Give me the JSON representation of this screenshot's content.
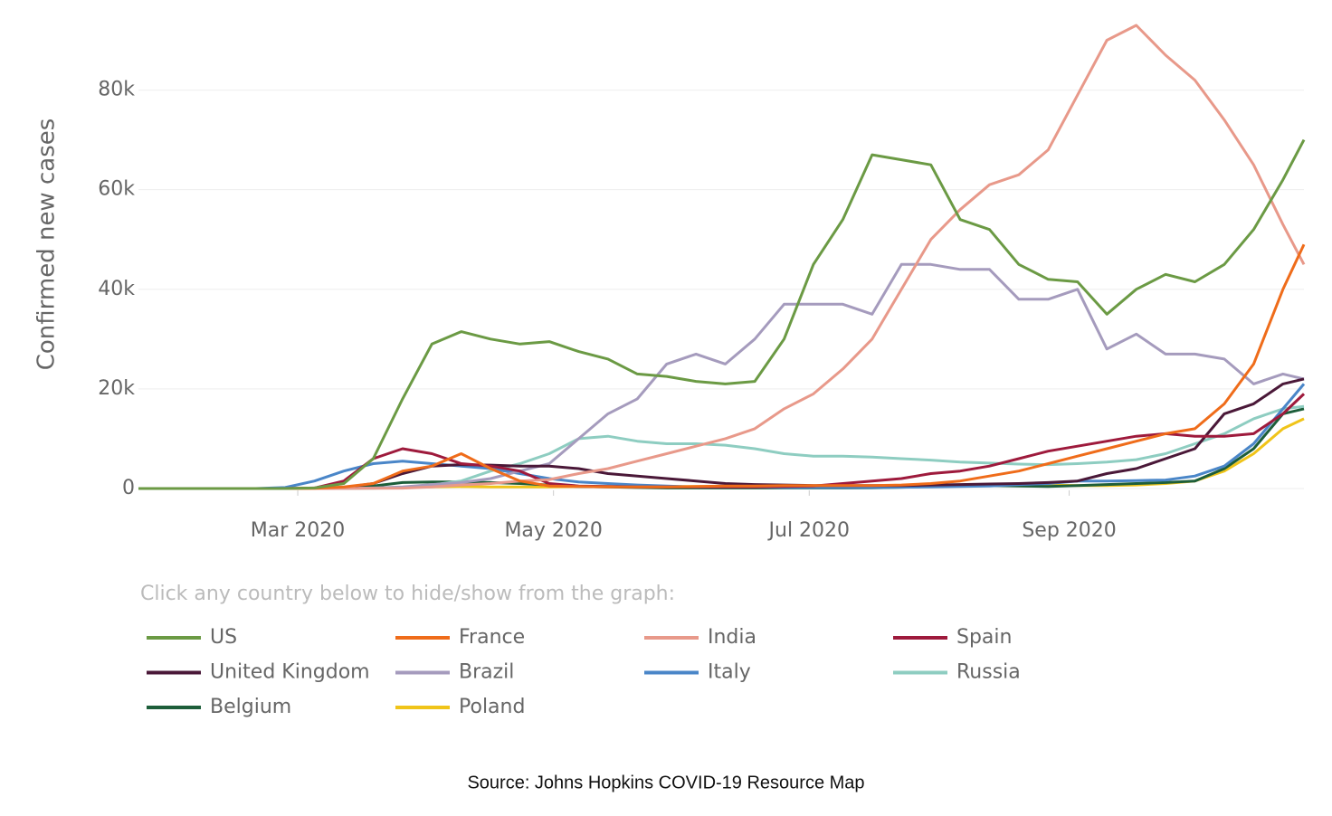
{
  "chart_data": {
    "type": "line",
    "y_label": "Confirmed new cases",
    "legend_title": "Click any country below to hide/show from the graph:",
    "source": "Source: Johns Hopkins COVID-19 Resource Map",
    "legend": "bottom",
    "grid": true,
    "x": [
      23,
      30,
      37,
      44,
      51,
      58,
      65,
      72,
      79,
      86,
      93,
      100,
      107,
      114,
      121,
      128,
      135,
      142,
      149,
      156,
      163,
      170,
      177,
      184,
      191,
      198,
      205,
      212,
      219,
      226,
      233,
      240,
      247,
      254,
      261,
      268,
      275,
      282,
      289,
      296,
      301
    ],
    "xlim": [
      23,
      301
    ],
    "xticks": [
      {
        "value": 61,
        "label": "Mar 2020"
      },
      {
        "value": 122,
        "label": "May 2020"
      },
      {
        "value": 183,
        "label": "Jul 2020"
      },
      {
        "value": 245,
        "label": "Sep 2020"
      }
    ],
    "ylim": [
      0,
      93000
    ],
    "yticks": [
      0,
      {
        "value": 20000,
        "label": "20k"
      },
      {
        "value": 40000,
        "label": "40k"
      },
      {
        "value": 60000,
        "label": "60k"
      },
      {
        "value": 80000,
        "label": "80k"
      }
    ],
    "series": [
      {
        "name": "US",
        "color": "#6b9a44",
        "values": [
          0,
          0,
          0,
          0,
          0,
          0,
          100,
          1000,
          6000,
          18000,
          29000,
          31500,
          30000,
          29000,
          29500,
          27500,
          26000,
          23000,
          22500,
          21500,
          21000,
          21500,
          30000,
          45000,
          54000,
          67000,
          66000,
          65000,
          54000,
          52000,
          45000,
          42000,
          41500,
          35000,
          40000,
          43000,
          41500,
          45000,
          52000,
          62000,
          70000
        ]
      },
      {
        "name": "France",
        "color": "#ef6c1a",
        "values": [
          0,
          0,
          0,
          0,
          0,
          0,
          50,
          300,
          1000,
          3500,
          4500,
          7000,
          4000,
          1500,
          500,
          400,
          300,
          300,
          300,
          400,
          500,
          500,
          600,
          600,
          600,
          600,
          700,
          1000,
          1500,
          2500,
          3500,
          5000,
          6500,
          8000,
          9500,
          11000,
          12000,
          17000,
          25000,
          40000,
          49000
        ]
      },
      {
        "name": "India",
        "color": "#e8998a",
        "values": [
          0,
          0,
          0,
          0,
          0,
          0,
          0,
          10,
          30,
          80,
          300,
          700,
          1000,
          1500,
          1800,
          3000,
          4000,
          5500,
          7000,
          8500,
          10000,
          12000,
          16000,
          19000,
          24000,
          30000,
          40000,
          50000,
          56000,
          61000,
          63000,
          68000,
          79000,
          90000,
          93000,
          87000,
          82000,
          74000,
          65000,
          53000,
          45000
        ]
      },
      {
        "name": "Spain",
        "color": "#9e1a3c",
        "values": [
          0,
          0,
          0,
          0,
          0,
          0,
          100,
          1500,
          6000,
          8000,
          7000,
          5000,
          4500,
          3500,
          1000,
          500,
          400,
          300,
          300,
          300,
          300,
          300,
          400,
          500,
          1000,
          1500,
          2000,
          3000,
          3500,
          4500,
          6000,
          7500,
          8500,
          9500,
          10500,
          11000,
          10500,
          10500,
          11000,
          15000,
          19000
        ]
      },
      {
        "name": "United Kingdom",
        "color": "#4a1838",
        "values": [
          0,
          0,
          0,
          0,
          0,
          0,
          20,
          200,
          1000,
          3000,
          4500,
          4800,
          4700,
          4500,
          4500,
          4000,
          3000,
          2500,
          2000,
          1500,
          1000,
          800,
          700,
          600,
          600,
          600,
          600,
          700,
          800,
          900,
          1000,
          1200,
          1500,
          3000,
          4000,
          6000,
          8000,
          15000,
          17000,
          21000,
          22000
        ]
      },
      {
        "name": "Brazil",
        "color": "#a59bbd",
        "values": [
          0,
          0,
          0,
          0,
          0,
          0,
          0,
          20,
          100,
          300,
          800,
          1200,
          2000,
          3500,
          5000,
          10000,
          15000,
          18000,
          25000,
          27000,
          25000,
          30000,
          37000,
          37000,
          37000,
          35000,
          45000,
          45000,
          44000,
          44000,
          38000,
          38000,
          40000,
          28000,
          31000,
          27000,
          27000,
          26000,
          21000,
          23000,
          22000
        ]
      },
      {
        "name": "Italy",
        "color": "#4a86c8",
        "values": [
          0,
          0,
          0,
          0,
          0,
          200,
          1500,
          3500,
          5000,
          5500,
          5000,
          4500,
          4000,
          3000,
          2000,
          1300,
          1000,
          700,
          500,
          300,
          300,
          300,
          200,
          200,
          200,
          200,
          250,
          300,
          400,
          500,
          800,
          1000,
          1500,
          1500,
          1600,
          1700,
          2500,
          4500,
          9000,
          16000,
          21000
        ]
      },
      {
        "name": "Russia",
        "color": "#8ecdc1",
        "values": [
          0,
          0,
          0,
          0,
          0,
          0,
          0,
          10,
          50,
          200,
          700,
          1500,
          3500,
          5000,
          7000,
          10000,
          10500,
          9500,
          9000,
          9000,
          8700,
          8000,
          7000,
          6500,
          6500,
          6300,
          6000,
          5700,
          5300,
          5100,
          4900,
          4800,
          5000,
          5300,
          5800,
          7000,
          9000,
          11000,
          14000,
          16000,
          16500
        ]
      },
      {
        "name": "Belgium",
        "color": "#1d5e3a",
        "values": [
          0,
          0,
          0,
          0,
          0,
          0,
          10,
          100,
          500,
          1200,
          1300,
          1300,
          1200,
          1000,
          700,
          400,
          300,
          200,
          100,
          100,
          100,
          100,
          100,
          100,
          100,
          150,
          250,
          400,
          500,
          600,
          500,
          400,
          600,
          800,
          1000,
          1200,
          1500,
          4000,
          8000,
          15000,
          16000
        ]
      },
      {
        "name": "Poland",
        "color": "#f0c419",
        "values": [
          0,
          0,
          0,
          0,
          0,
          0,
          0,
          20,
          100,
          200,
          300,
          400,
          300,
          300,
          300,
          400,
          400,
          400,
          400,
          400,
          400,
          300,
          300,
          300,
          300,
          300,
          400,
          500,
          600,
          700,
          700,
          700,
          600,
          600,
          700,
          1000,
          1500,
          3500,
          7000,
          12000,
          14000
        ]
      }
    ]
  }
}
